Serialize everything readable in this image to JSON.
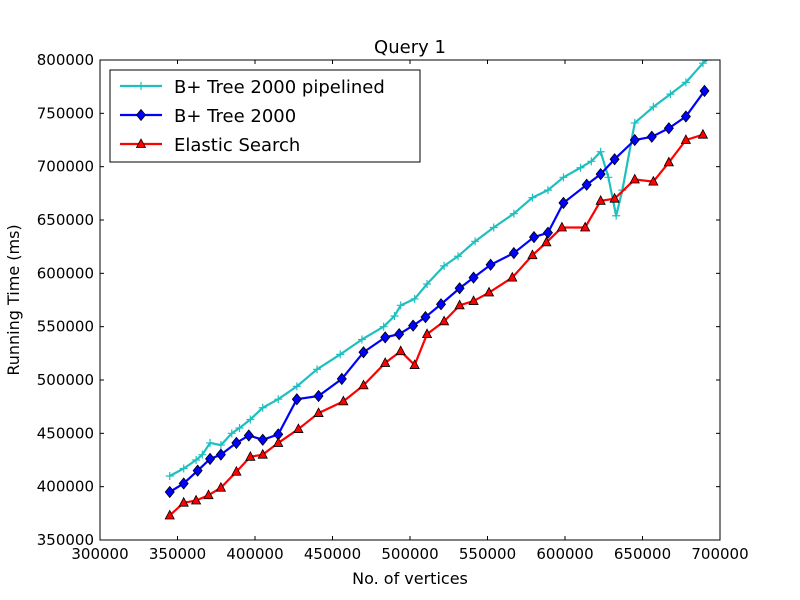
{
  "chart_data": {
    "type": "line",
    "title": "Query 1",
    "xlabel": "No. of vertices",
    "ylabel": "Running Time (ms)",
    "xlim": [
      300000,
      700000
    ],
    "ylim": [
      350000,
      800000
    ],
    "xticks": [
      300000,
      350000,
      400000,
      450000,
      500000,
      550000,
      600000,
      650000,
      700000
    ],
    "yticks": [
      350000,
      400000,
      450000,
      500000,
      550000,
      600000,
      650000,
      700000,
      750000,
      800000
    ],
    "grid": false,
    "legend_position": "top-left",
    "series": [
      {
        "name": "B+ Tree 2000 pipelined",
        "color": "#1fbfbf",
        "marker": "plus",
        "points": [
          [
            345000,
            410000
          ],
          [
            354000,
            417000
          ],
          [
            362000,
            425000
          ],
          [
            366000,
            430000
          ],
          [
            371000,
            441000
          ],
          [
            378000,
            439000
          ],
          [
            385000,
            450000
          ],
          [
            390000,
            455000
          ],
          [
            397000,
            463000
          ],
          [
            405000,
            474000
          ],
          [
            415000,
            482000
          ],
          [
            427000,
            494000
          ],
          [
            440000,
            510000
          ],
          [
            455000,
            524000
          ],
          [
            469000,
            538000
          ],
          [
            483000,
            550000
          ],
          [
            490000,
            560000
          ],
          [
            494000,
            570000
          ],
          [
            503000,
            576000
          ],
          [
            511000,
            590000
          ],
          [
            522000,
            607000
          ],
          [
            531000,
            616000
          ],
          [
            542000,
            630000
          ],
          [
            554000,
            643000
          ],
          [
            567000,
            656000
          ],
          [
            579000,
            671000
          ],
          [
            589000,
            678000
          ],
          [
            599000,
            690000
          ],
          [
            610000,
            699000
          ],
          [
            617000,
            705000
          ],
          [
            623000,
            714000
          ],
          [
            628000,
            690000
          ],
          [
            633000,
            654000
          ],
          [
            637000,
            678000
          ],
          [
            645000,
            741000
          ],
          [
            657000,
            756000
          ],
          [
            668000,
            768000
          ],
          [
            678000,
            779000
          ],
          [
            689000,
            797000
          ],
          [
            694000,
            803000
          ]
        ]
      },
      {
        "name": "B+ Tree 2000",
        "color": "#0000ff",
        "marker": "diamond",
        "points": [
          [
            345000,
            395000
          ],
          [
            354000,
            403000
          ],
          [
            363000,
            415000
          ],
          [
            371000,
            426000
          ],
          [
            378000,
            430000
          ],
          [
            388000,
            441000
          ],
          [
            396000,
            448000
          ],
          [
            405000,
            444000
          ],
          [
            415000,
            449000
          ],
          [
            427000,
            482000
          ],
          [
            441000,
            485000
          ],
          [
            456000,
            501000
          ],
          [
            470000,
            526000
          ],
          [
            484000,
            540000
          ],
          [
            493000,
            543000
          ],
          [
            502000,
            551000
          ],
          [
            510000,
            559000
          ],
          [
            520000,
            571000
          ],
          [
            532000,
            586000
          ],
          [
            541000,
            596000
          ],
          [
            552000,
            608000
          ],
          [
            567000,
            619000
          ],
          [
            580000,
            634000
          ],
          [
            589000,
            638000
          ],
          [
            599000,
            666000
          ],
          [
            614000,
            683000
          ],
          [
            623000,
            693000
          ],
          [
            632000,
            707000
          ],
          [
            645000,
            725000
          ],
          [
            656000,
            728000
          ],
          [
            667000,
            736000
          ],
          [
            678000,
            747000
          ],
          [
            690000,
            771000
          ]
        ]
      },
      {
        "name": "Elastic Search",
        "color": "#ff0000",
        "marker": "triangle",
        "points": [
          [
            345000,
            373000
          ],
          [
            354000,
            385000
          ],
          [
            362000,
            387000
          ],
          [
            370000,
            392000
          ],
          [
            378000,
            399000
          ],
          [
            388000,
            414000
          ],
          [
            397000,
            428000
          ],
          [
            405000,
            430000
          ],
          [
            415000,
            441000
          ],
          [
            428000,
            454000
          ],
          [
            441000,
            469000
          ],
          [
            457000,
            480000
          ],
          [
            470000,
            495000
          ],
          [
            484000,
            516000
          ],
          [
            494000,
            527000
          ],
          [
            503000,
            514000
          ],
          [
            511000,
            543000
          ],
          [
            522000,
            555000
          ],
          [
            532000,
            570000
          ],
          [
            541000,
            574000
          ],
          [
            551000,
            582000
          ],
          [
            566000,
            596000
          ],
          [
            579000,
            617000
          ],
          [
            588000,
            629000
          ],
          [
            598000,
            643000
          ],
          [
            613000,
            643000
          ],
          [
            623000,
            668000
          ],
          [
            632000,
            670000
          ],
          [
            645000,
            688000
          ],
          [
            657000,
            686000
          ],
          [
            667000,
            704000
          ],
          [
            678000,
            725000
          ],
          [
            689000,
            730000
          ]
        ]
      }
    ]
  }
}
